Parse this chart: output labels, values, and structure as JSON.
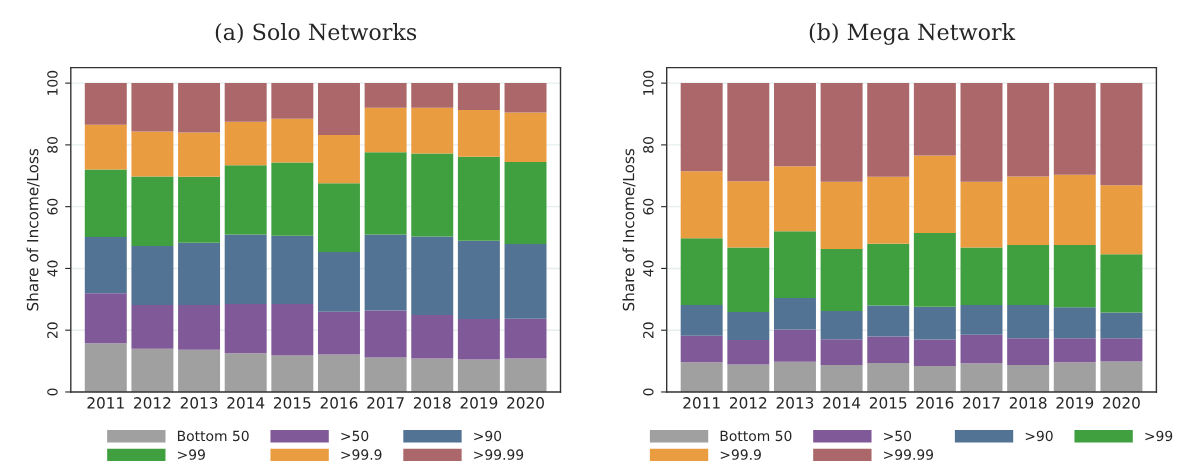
{
  "chart_data": [
    {
      "type": "bar",
      "stacked": true,
      "title": "(a) Solo Networks",
      "ylabel": "Share of Income/Loss",
      "categories": [
        "2011",
        "2012",
        "2013",
        "2014",
        "2015",
        "2016",
        "2017",
        "2018",
        "2019",
        "2020"
      ],
      "ylim": [
        0,
        105
      ],
      "yticks": [
        0,
        20,
        40,
        60,
        80,
        100
      ],
      "grid": "y",
      "legend": "bottom",
      "series": [
        {
          "name": "Bottom 50",
          "color": "#a0a0a0",
          "values": [
            15.8,
            14,
            13.7,
            12.5,
            11.8,
            12.1,
            11.2,
            10.8,
            10.5,
            10.8
          ]
        },
        {
          "name": ">50",
          "color": "#805a98",
          "values": [
            16.2,
            14.2,
            14.5,
            16,
            16.7,
            13.9,
            15.2,
            14.1,
            13.1,
            12.9
          ]
        },
        {
          "name": ">90",
          "color": "#527393",
          "values": [
            18.2,
            19.1,
            20.1,
            22.5,
            22.1,
            19.3,
            24.6,
            25.4,
            25.4,
            24.2
          ]
        },
        {
          "name": ">99",
          "color": "#40a040",
          "values": [
            21.8,
            22.5,
            21.4,
            22.4,
            23.7,
            22.3,
            26.6,
            26.9,
            27.2,
            26.6
          ]
        },
        {
          "name": ">99.9",
          "color": "#ea9c40",
          "values": [
            14.5,
            14.5,
            14.3,
            14.1,
            14.2,
            15.6,
            14.4,
            14.8,
            15.1,
            16
          ]
        },
        {
          "name": ">99.99",
          "color": "#ab676a",
          "values": [
            13.5,
            15.7,
            16,
            12.5,
            11.5,
            16.8,
            8,
            8,
            8.7,
            9.5
          ]
        }
      ]
    },
    {
      "type": "bar",
      "stacked": true,
      "title": "(b) Mega Network",
      "ylabel": "Share of Income/Loss",
      "categories": [
        "2011",
        "2012",
        "2013",
        "2014",
        "2015",
        "2016",
        "2017",
        "2018",
        "2019",
        "2020"
      ],
      "ylim": [
        0,
        105
      ],
      "yticks": [
        0,
        20,
        40,
        60,
        80,
        100
      ],
      "grid": "y",
      "legend": "bottom",
      "series": [
        {
          "name": "Bottom 50",
          "color": "#a0a0a0",
          "values": [
            9.6,
            8.9,
            9.8,
            8.7,
            9.4,
            8.4,
            9.3,
            8.7,
            9.6,
            9.9
          ]
        },
        {
          "name": ">50",
          "color": "#805a98",
          "values": [
            8.6,
            7.9,
            10.4,
            8.4,
            8.6,
            8.6,
            9.2,
            8.7,
            7.8,
            7.5
          ]
        },
        {
          "name": ">90",
          "color": "#527393",
          "values": [
            10,
            9.1,
            10.2,
            9.1,
            10,
            10.6,
            9.7,
            10.8,
            10,
            8.3
          ]
        },
        {
          "name": ">99",
          "color": "#40a040",
          "values": [
            21.6,
            20.9,
            21.6,
            20.1,
            20,
            23.9,
            18.6,
            19.4,
            20.2,
            18.9
          ]
        },
        {
          "name": ">99.9",
          "color": "#ea9c40",
          "values": [
            21.7,
            21.4,
            21.1,
            21.8,
            21.7,
            25.1,
            21.3,
            22.2,
            22.7,
            22.3
          ]
        },
        {
          "name": ">99.99",
          "color": "#ab676a",
          "values": [
            28.5,
            31.8,
            26.9,
            31.9,
            30.3,
            23.4,
            31.9,
            30.2,
            29.7,
            33.1
          ]
        }
      ]
    }
  ]
}
